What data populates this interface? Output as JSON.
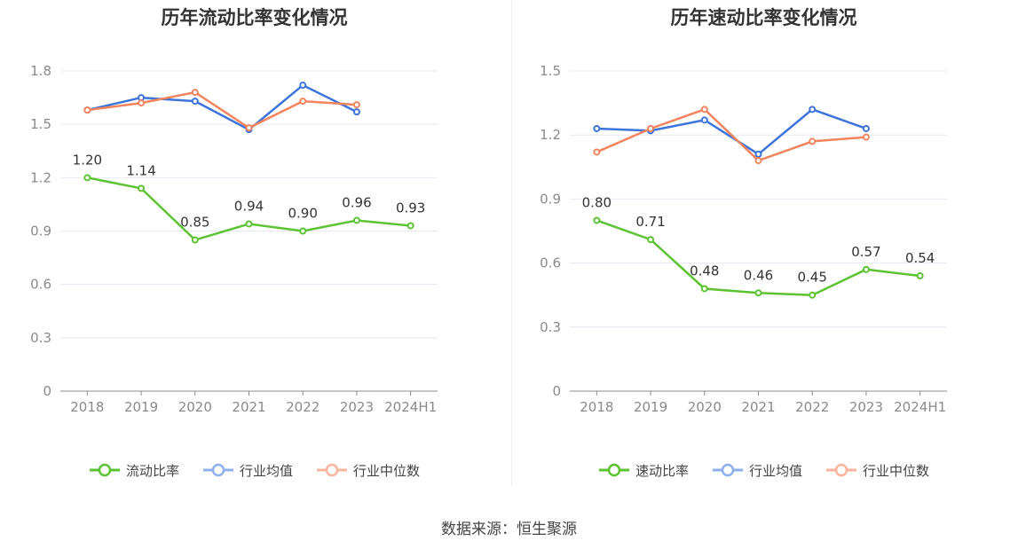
{
  "source": "数据来源：恒生聚源",
  "colors": {
    "company": "#5cc332",
    "industry_avg": "#3d74dc",
    "industry_median": "#f3845d",
    "grid": "#e6e9f0",
    "axis": "#8c8c8c"
  },
  "chart_data": [
    {
      "type": "line",
      "title": "历年流动比率变化情况",
      "categories": [
        "2018",
        "2019",
        "2020",
        "2021",
        "2022",
        "2023",
        "2024H1"
      ],
      "ylim": [
        0,
        1.8
      ],
      "yticks": [
        "0",
        "0.3",
        "0.6",
        "0.9",
        "1.2",
        "1.5",
        "1.8"
      ],
      "ytick_values": [
        0,
        0.3,
        0.6,
        0.9,
        1.2,
        1.5,
        1.8
      ],
      "grid": true,
      "legend_position": "bottom",
      "series": [
        {
          "name": "流动比率",
          "values": [
            1.2,
            1.14,
            0.85,
            0.94,
            0.9,
            0.96,
            0.93
          ],
          "labels": [
            "1.20",
            "1.14",
            "0.85",
            "0.94",
            "0.90",
            "0.96",
            "0.93"
          ]
        },
        {
          "name": "行业均值",
          "values": [
            1.58,
            1.65,
            1.63,
            1.47,
            1.72,
            1.57,
            null
          ]
        },
        {
          "name": "行业中位数",
          "values": [
            1.58,
            1.62,
            1.68,
            1.48,
            1.63,
            1.61,
            null
          ]
        }
      ]
    },
    {
      "type": "line",
      "title": "历年速动比率变化情况",
      "categories": [
        "2018",
        "2019",
        "2020",
        "2021",
        "2022",
        "2023",
        "2024H1"
      ],
      "ylim": [
        0,
        1.5
      ],
      "yticks": [
        "0",
        "0.3",
        "0.6",
        "0.9",
        "1.2",
        "1.5"
      ],
      "ytick_values": [
        0,
        0.3,
        0.6,
        0.9,
        1.2,
        1.5
      ],
      "grid": true,
      "legend_position": "bottom",
      "series": [
        {
          "name": "速动比率",
          "values": [
            0.8,
            0.71,
            0.48,
            0.46,
            0.45,
            0.57,
            0.54
          ],
          "labels": [
            "0.80",
            "0.71",
            "0.48",
            "0.46",
            "0.45",
            "0.57",
            "0.54"
          ]
        },
        {
          "name": "行业均值",
          "values": [
            1.23,
            1.22,
            1.27,
            1.11,
            1.32,
            1.23,
            null
          ]
        },
        {
          "name": "行业中位数",
          "values": [
            1.12,
            1.23,
            1.32,
            1.08,
            1.17,
            1.19,
            null
          ]
        }
      ]
    }
  ]
}
